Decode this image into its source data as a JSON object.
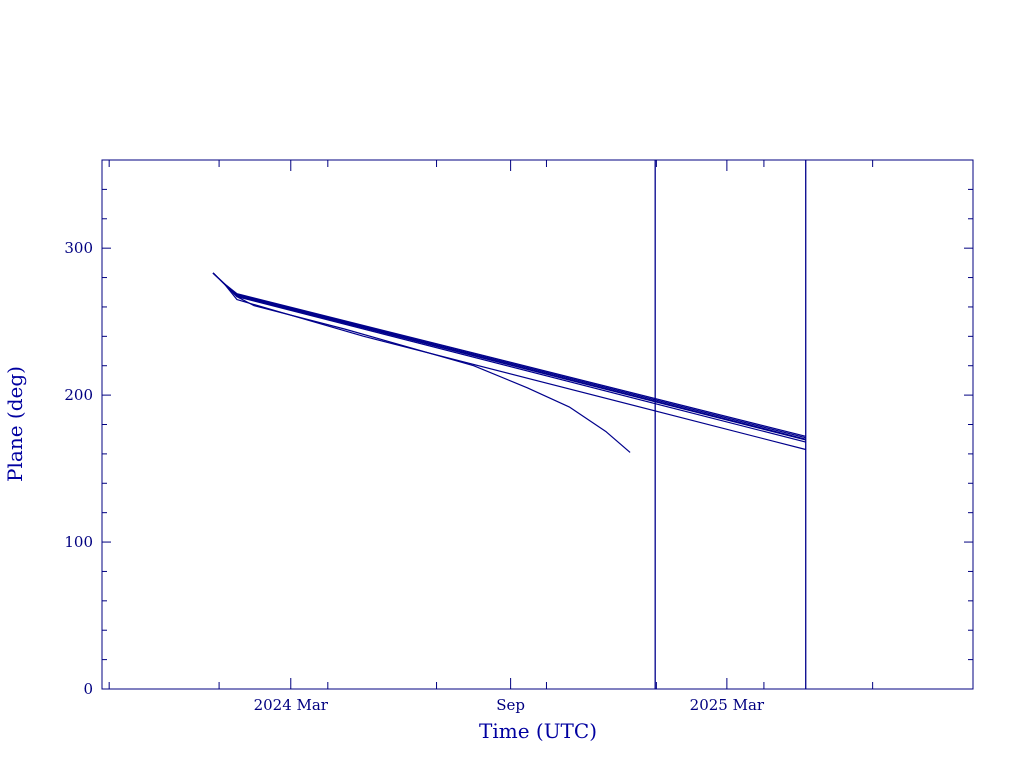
{
  "chart_data": {
    "type": "line",
    "title": "",
    "xlabel": "Time (UTC)",
    "ylabel": "Plane (deg)",
    "xlim": [
      "2023-09-25",
      "2025-09-23"
    ],
    "ylim": [
      0,
      360
    ],
    "x_ticks": [
      {
        "date": "2024-03-01",
        "label": "2024 Mar"
      },
      {
        "date": "2024-09-01",
        "label": "Sep"
      },
      {
        "date": "2025-03-01",
        "label": "2025 Mar"
      }
    ],
    "y_ticks": [
      {
        "value": 0,
        "label": "0"
      },
      {
        "value": 100,
        "label": "100"
      },
      {
        "value": 200,
        "label": "200"
      },
      {
        "value": 300,
        "label": "300"
      }
    ],
    "grid": false,
    "vertical_markers": [
      "2024-12-31",
      "2025-05-06"
    ],
    "series": [
      {
        "x": [
          "2023-12-27",
          "2024-01-05",
          "2024-01-16",
          "2025-05-06"
        ],
        "y": [
          283,
          276,
          269,
          172
        ]
      },
      {
        "x": [
          "2023-12-27",
          "2024-01-05",
          "2024-01-16",
          "2025-05-06"
        ],
        "y": [
          283,
          276,
          268.5,
          171
        ]
      },
      {
        "x": [
          "2023-12-27",
          "2024-01-05",
          "2024-01-16",
          "2025-05-06"
        ],
        "y": [
          283,
          276,
          268,
          170
        ]
      },
      {
        "x": [
          "2023-12-27",
          "2024-01-05",
          "2024-01-16",
          "2025-05-06"
        ],
        "y": [
          283,
          276,
          267.5,
          169.5
        ]
      },
      {
        "x": [
          "2023-12-27",
          "2024-01-05",
          "2024-01-16",
          "2025-05-06"
        ],
        "y": [
          283,
          276,
          267,
          168
        ]
      },
      {
        "x": [
          "2023-12-27",
          "2024-01-05",
          "2024-01-16",
          "2024-05-01",
          "2025-05-06"
        ],
        "y": [
          283,
          276,
          265,
          240,
          163
        ]
      },
      {
        "x": [
          "2023-12-27",
          "2024-01-05",
          "2024-01-16",
          "2024-01-30",
          "2024-04-15",
          "2024-08-01",
          "2024-09-15",
          "2024-10-20",
          "2024-11-20",
          "2024-12-10"
        ],
        "y": [
          283,
          276,
          267,
          261,
          245,
          220,
          205,
          192,
          175,
          161
        ]
      }
    ],
    "colors": {
      "line": "#00008b",
      "axis": "#000080",
      "title": "#0000a0"
    }
  }
}
